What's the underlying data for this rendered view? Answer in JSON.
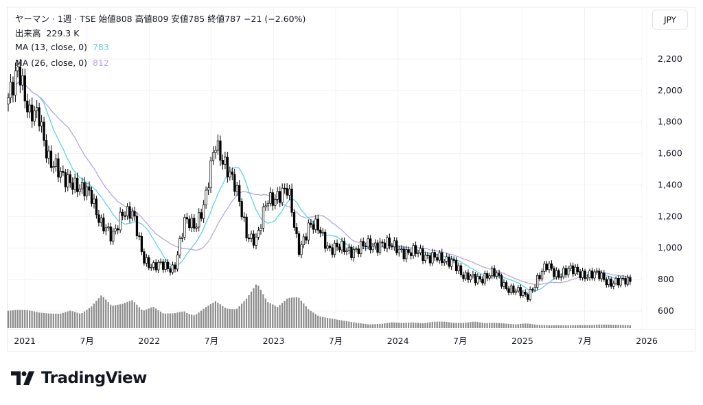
{
  "header": {
    "symbol_line": "ヤーマン · 1週 · TSE  始値808  高値809  安値785  終値787  −21 (−2.60%)",
    "volume_label": "出来高",
    "volume_value": "229.3 K",
    "ma1_label": "MA (13, close, 0)",
    "ma1_value": "783",
    "ma2_label": "MA (26, close, 0)",
    "ma2_value": "812"
  },
  "currency_button": "JPY",
  "brand": "TradingView",
  "colors": {
    "ma1": "#5fd3e5",
    "ma2": "#b9a6e3",
    "volume": "#8a8a8a",
    "candle": "#000000"
  },
  "chart_data": {
    "type": "candlestick",
    "interval": "1 week",
    "y_ticks": [
      "2,200",
      "2,000",
      "1,800",
      "1,600",
      "1,400",
      "1,200",
      "1,000",
      "800",
      "600"
    ],
    "y_tick_values": [
      2200,
      2000,
      1800,
      1600,
      1400,
      1200,
      1000,
      800,
      600
    ],
    "ylim": [
      500,
      2380
    ],
    "x_ticks": [
      "2021",
      "7月",
      "2022",
      "7月",
      "2023",
      "7月",
      "2024",
      "7月",
      "2025",
      "7月",
      "2026"
    ],
    "x_tick_months": [
      1,
      7,
      13,
      19,
      25,
      31,
      37,
      43,
      49,
      55,
      61
    ],
    "monthly_close_approx": {
      "start": "2020-11",
      "values": [
        1920,
        2200,
        1810,
        1850,
        1550,
        1450,
        1450,
        1350,
        1350,
        1150,
        1050,
        1250,
        1200,
        950,
        880,
        880,
        880,
        1150,
        1150,
        1300,
        1650,
        1550,
        1350,
        1100,
        1050,
        1300,
        1350,
        1350,
        1000,
        1130,
        1120,
        1000,
        990,
        990,
        1000,
        1010,
        1040,
        1000,
        990,
        970,
        950,
        960,
        900,
        930,
        800,
        810,
        820,
        830,
        760,
        720,
        690,
        800,
        880,
        840,
        850,
        850,
        830,
        820,
        790,
        780,
        787
      ]
    },
    "monthly_volume_approx_k": {
      "values": [
        2400,
        2200,
        1900,
        1500,
        1300,
        1200,
        1400,
        1100,
        1600,
        2500,
        1700,
        1900,
        2300,
        1500,
        2000,
        1500,
        1700,
        2200,
        1600,
        2300,
        2700,
        1800,
        1600,
        2400,
        3500,
        2000,
        1600,
        2300,
        2400,
        1500,
        1000,
        900,
        800,
        700,
        600,
        500,
        500,
        600,
        500,
        500,
        400,
        500,
        500,
        400,
        400,
        500,
        400,
        450,
        400,
        350,
        500,
        400,
        400,
        350,
        300,
        300,
        280,
        300,
        280,
        250,
        229.3
      ]
    },
    "series": [
      {
        "name": "MA (13, close, 0)",
        "last": 783
      },
      {
        "name": "MA (26, close, 0)",
        "last": 812
      }
    ]
  }
}
